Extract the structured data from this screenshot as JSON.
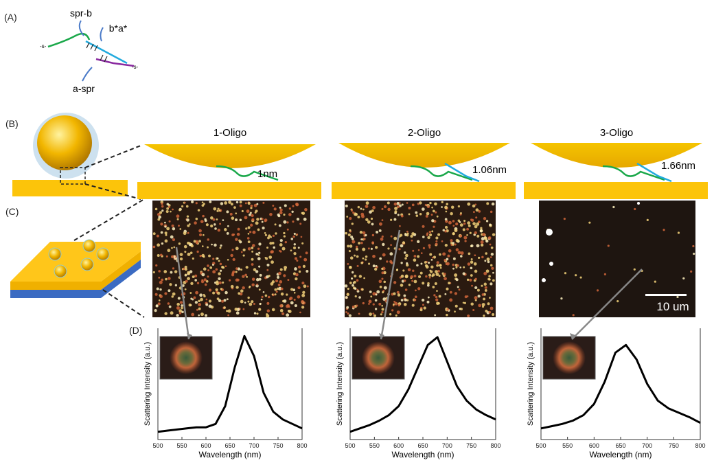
{
  "panel_labels": {
    "a": "(A)",
    "b": "(B)",
    "c": "(C)",
    "d": "(D)"
  },
  "schematic": {
    "strand_labels": [
      "spr-b",
      "b*a*",
      "a-spr"
    ],
    "thiol": "-s-"
  },
  "columns": [
    {
      "title": "1-Oligo",
      "gap": "1nm"
    },
    {
      "title": "2-Oligo",
      "gap": "1.06nm"
    },
    {
      "title": "3-Oligo",
      "gap": "1.66nm"
    }
  ],
  "scale_bar": "10 um",
  "chart_data": [
    {
      "type": "line",
      "xlabel": "Wavelength (nm)",
      "ylabel": "Scattering Intensity (a.u.)",
      "xlim": [
        500,
        800
      ],
      "xticks": [
        500,
        550,
        600,
        650,
        700,
        750,
        800
      ],
      "ylim": [
        0,
        1
      ],
      "color": "#000000",
      "x": [
        500,
        520,
        540,
        560,
        580,
        600,
        620,
        640,
        660,
        680,
        700,
        720,
        740,
        760,
        780,
        800
      ],
      "values": [
        0.07,
        0.08,
        0.09,
        0.1,
        0.11,
        0.11,
        0.14,
        0.3,
        0.65,
        0.93,
        0.75,
        0.42,
        0.25,
        0.18,
        0.14,
        0.1
      ]
    },
    {
      "type": "line",
      "xlabel": "Wavelength (nm)",
      "ylabel": "Scattering Intensity (a.u.)",
      "xlim": [
        500,
        800
      ],
      "xticks": [
        500,
        550,
        600,
        650,
        700,
        750,
        800
      ],
      "ylim": [
        0,
        1
      ],
      "color": "#000000",
      "x": [
        500,
        520,
        540,
        560,
        580,
        600,
        620,
        640,
        660,
        680,
        700,
        720,
        740,
        760,
        780,
        800
      ],
      "values": [
        0.07,
        0.1,
        0.13,
        0.17,
        0.22,
        0.3,
        0.45,
        0.65,
        0.85,
        0.92,
        0.7,
        0.48,
        0.35,
        0.27,
        0.22,
        0.18
      ]
    },
    {
      "type": "line",
      "xlabel": "Wavelength (nm)",
      "ylabel": "Scattering Intensity (a.u.)",
      "xlim": [
        500,
        800
      ],
      "xticks": [
        500,
        550,
        600,
        650,
        700,
        750,
        800
      ],
      "ylim": [
        0,
        1
      ],
      "color": "#000000",
      "x": [
        500,
        520,
        540,
        560,
        580,
        600,
        620,
        640,
        660,
        680,
        700,
        720,
        740,
        760,
        780,
        800
      ],
      "values": [
        0.1,
        0.12,
        0.14,
        0.17,
        0.22,
        0.32,
        0.52,
        0.78,
        0.85,
        0.72,
        0.5,
        0.35,
        0.28,
        0.24,
        0.2,
        0.15
      ]
    }
  ]
}
